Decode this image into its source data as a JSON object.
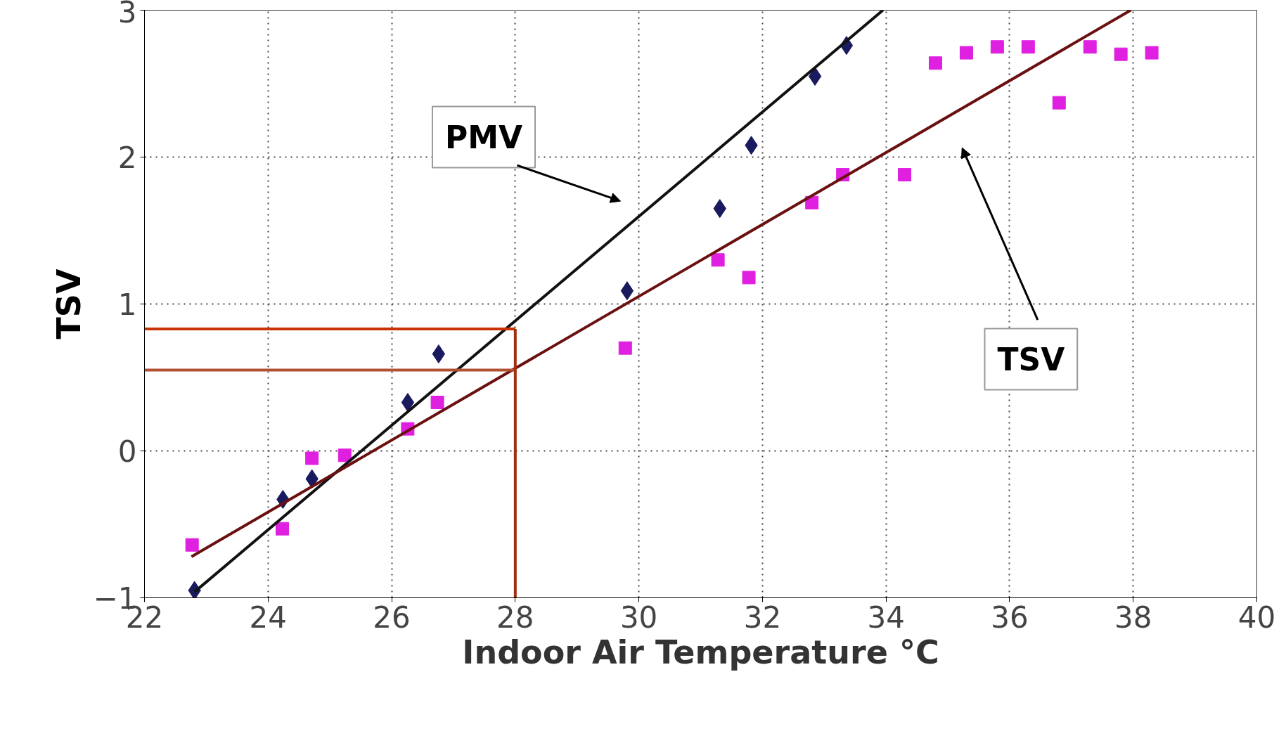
{
  "chart_data": {
    "type": "scatter",
    "xlabel": "Indoor Air Temperature °C",
    "ylabel": "TSV",
    "xlim": [
      22,
      40
    ],
    "ylim": [
      -1,
      3
    ],
    "xticks": [
      22,
      24,
      26,
      28,
      30,
      32,
      34,
      36,
      38,
      40
    ],
    "yticks": [
      -1,
      0,
      1,
      2,
      3
    ],
    "grid": true,
    "series": [
      {
        "marker": "diamond",
        "color": "#1a1a5e",
        "x": [
          22.81,
          24.24,
          24.71,
          26.26,
          26.76,
          29.81,
          31.31,
          31.82,
          32.85,
          33.36
        ],
        "values": [
          -0.95,
          -0.33,
          -0.19,
          0.33,
          0.66,
          1.09,
          1.65,
          2.08,
          2.55,
          2.76
        ]
      },
      {
        "marker": "square",
        "color": "#e020e0",
        "x": [
          22.77,
          24.23,
          24.71,
          25.24,
          26.26,
          26.74,
          29.78,
          31.28,
          31.78,
          32.8,
          33.3,
          34.3,
          34.8,
          35.3,
          35.8,
          36.3,
          36.8,
          37.3,
          37.8,
          38.3
        ],
        "values": [
          -0.64,
          -0.53,
          -0.05,
          -0.03,
          0.15,
          0.33,
          0.7,
          1.3,
          1.18,
          1.69,
          1.88,
          1.88,
          2.64,
          2.71,
          2.75,
          2.75,
          2.37,
          2.75,
          2.7,
          2.71
        ]
      },
      {
        "type": "line",
        "color": "#111111",
        "x": [
          22.81,
          33.95
        ],
        "values": [
          -0.96,
          3.0
        ]
      },
      {
        "type": "line",
        "color": "#6b1010",
        "x": [
          22.76,
          37.96
        ],
        "values": [
          -0.72,
          3.0
        ]
      },
      {
        "type": "line",
        "color": "#c83200",
        "x": [
          22,
          28
        ],
        "values": [
          0.83,
          0.83
        ]
      },
      {
        "type": "line",
        "color": "#b05030",
        "x": [
          22,
          28
        ],
        "values": [
          0.55,
          0.55
        ]
      },
      {
        "type": "line",
        "color": "#a03010",
        "x": [
          28,
          28
        ],
        "values": [
          -1,
          0.83
        ]
      }
    ],
    "annotations": [
      "PMV",
      "TSV"
    ]
  }
}
